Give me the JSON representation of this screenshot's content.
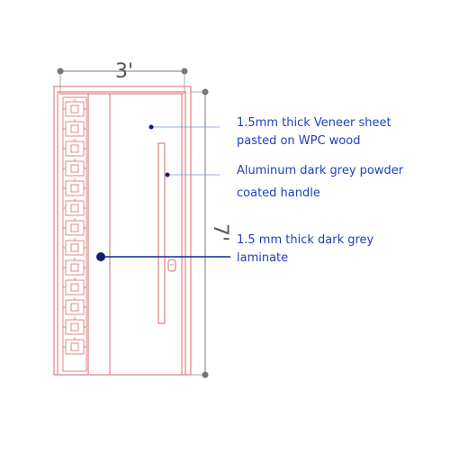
{
  "dimensions": {
    "width_label": "3'",
    "height_label": "7'"
  },
  "annotations": {
    "veneer": {
      "line1": "1.5mm thick Veneer sheet",
      "line2": "pasted on WPC wood"
    },
    "handle": {
      "line1": "Aluminum dark grey powder",
      "line2": "coated handle"
    },
    "laminate": {
      "line1": "1.5 mm thick dark grey",
      "line2": "laminate"
    }
  },
  "colors": {
    "door_outline": "#d86a6a",
    "dimension": "#666666",
    "annotation_text": "#1f3fbf",
    "leader_line": "#7b93d6",
    "laminate_leader": "#0d2a9c"
  }
}
